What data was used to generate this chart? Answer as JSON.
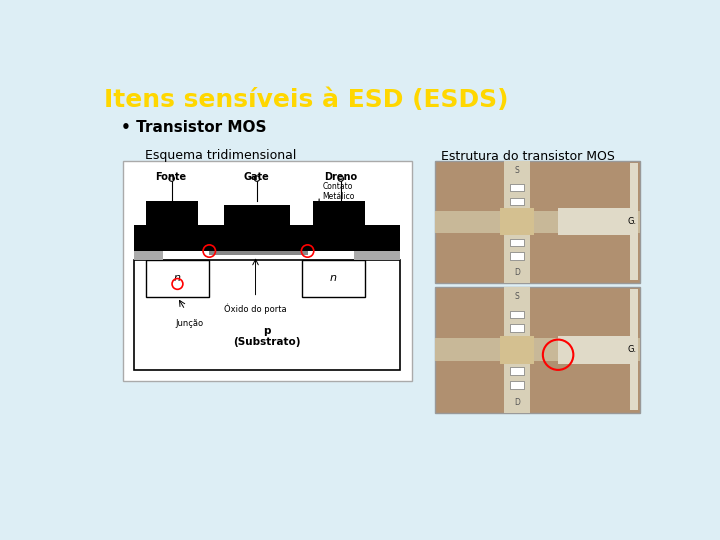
{
  "title": "Itens sensíveis à ESD (ESDS)",
  "title_color": "#FFD700",
  "title_fontsize": 18,
  "background_color": "#ddeef5",
  "bullet_text": "• Transistor MOS",
  "bullet_fontsize": 11,
  "label_left": "Esquema tridimensional",
  "label_right": "Estrutura do transistor MOS",
  "label_fontsize": 9,
  "bg_color": "#ddeef5",
  "diagram_bg": "white",
  "substrate_color": "white",
  "metal_color": "black",
  "gray_color": "#cccccc",
  "photo_bg": "#b8956a",
  "photo_stripe": "#c8a87a",
  "photo_metal": "#e8e0c8"
}
